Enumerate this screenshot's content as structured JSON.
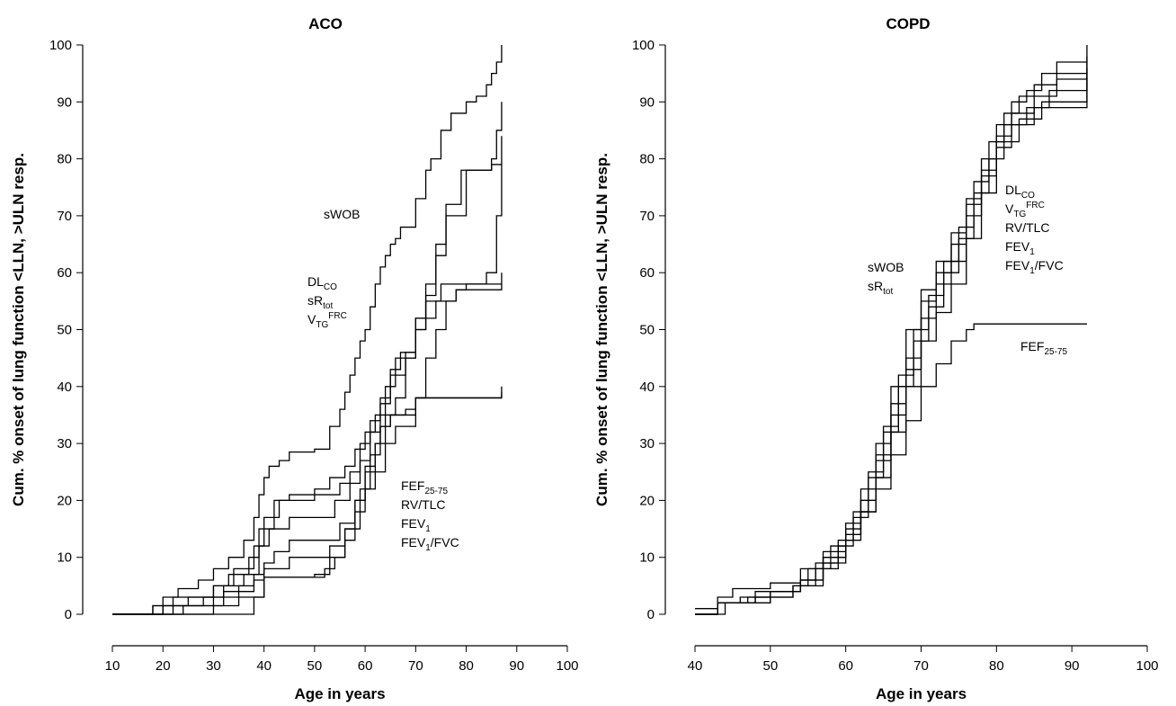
{
  "chart_data": [
    {
      "type": "line",
      "title": "ACO",
      "x_label": "Age in years",
      "y_label": "Cum. % onset of lung function <LLN, >ULN resp.",
      "xlim": [
        10,
        100
      ],
      "xticks": [
        10,
        20,
        30,
        40,
        50,
        60,
        70,
        80,
        90,
        100
      ],
      "ylim": [
        0,
        100
      ],
      "yticks": [
        0,
        10,
        20,
        30,
        40,
        50,
        60,
        70,
        80,
        90,
        100
      ],
      "step": true,
      "series": [
        {
          "color": "#000000",
          "x": [
            10,
            18,
            20,
            23,
            27,
            30,
            33,
            36,
            38,
            39,
            40,
            41,
            43,
            45,
            48,
            50,
            53,
            55,
            56,
            57,
            58,
            59,
            60,
            61,
            62,
            63,
            64,
            65,
            66,
            67,
            68,
            70,
            72,
            73,
            75,
            77,
            79,
            80,
            82,
            84,
            85,
            86,
            87
          ],
          "values": [
            0,
            1.5,
            3,
            4.5,
            6,
            8,
            10,
            13,
            17,
            21,
            24,
            26,
            27,
            28.5,
            28.5,
            29,
            33,
            36,
            39,
            42,
            45,
            48,
            50,
            54,
            58,
            61,
            63,
            65,
            66,
            68,
            68,
            73,
            78,
            80,
            85,
            88,
            88,
            90,
            91,
            93,
            95,
            97,
            100
          ]
        },
        {
          "color": "#000000",
          "x": [
            10,
            18,
            22,
            30,
            33,
            37,
            39,
            42,
            45,
            53,
            55,
            57,
            59,
            61,
            63,
            65,
            68,
            70,
            72,
            74,
            76,
            79,
            85,
            86,
            87
          ],
          "values": [
            0,
            1.5,
            3,
            5,
            7,
            10,
            15,
            20,
            21,
            21,
            23,
            25,
            30,
            34,
            38,
            42,
            46,
            52,
            58,
            65,
            72,
            78,
            80,
            85,
            90
          ]
        },
        {
          "color": "#000000",
          "x": [
            10,
            20,
            25,
            30,
            34,
            38,
            40,
            43,
            50,
            53,
            56,
            58,
            60,
            62,
            64,
            66,
            70,
            72,
            74,
            76,
            80,
            85,
            87
          ],
          "values": [
            0,
            1.5,
            3,
            5,
            8,
            12,
            17,
            20,
            22,
            24,
            26,
            29,
            32,
            35,
            40,
            45,
            50,
            56,
            63,
            70,
            78,
            79,
            84
          ]
        },
        {
          "color": "#000000",
          "x": [
            10,
            20,
            28,
            32,
            36,
            39,
            41,
            45,
            52,
            54,
            57,
            59,
            61,
            63,
            65,
            67,
            70,
            72,
            75,
            87
          ],
          "values": [
            0,
            1.5,
            3,
            5,
            7,
            12,
            15,
            17,
            17,
            20,
            23,
            27,
            32,
            37,
            43,
            46,
            50,
            55,
            58,
            60
          ]
        },
        {
          "color": "#000000",
          "x": [
            10,
            22,
            30,
            35,
            38,
            40,
            42,
            45,
            52,
            55,
            58,
            60,
            62,
            63,
            65,
            68,
            70,
            73,
            87
          ],
          "values": [
            0,
            1.5,
            3,
            5,
            7,
            9,
            11,
            13,
            13,
            16,
            20,
            25,
            30,
            33,
            35,
            36,
            38,
            38,
            40
          ]
        },
        {
          "color": "#000000",
          "x": [
            10,
            24,
            32,
            38,
            40,
            45,
            53,
            56,
            58,
            60,
            62,
            64,
            66,
            68,
            70,
            74,
            78,
            87
          ],
          "values": [
            0,
            1.5,
            4,
            6,
            8,
            10,
            12,
            15,
            20,
            26,
            30,
            35,
            38,
            45,
            52,
            55,
            57,
            58
          ]
        },
        {
          "color": "#000000",
          "x": [
            10,
            30,
            35,
            40,
            44,
            50,
            53,
            56,
            59,
            61,
            63,
            65,
            69,
            70,
            87
          ],
          "values": [
            0,
            1.5,
            3,
            6.5,
            6.5,
            7,
            10,
            15,
            22,
            28,
            33,
            35,
            35,
            38,
            39
          ]
        },
        {
          "color": "#000000",
          "x": [
            10,
            38,
            40,
            45,
            52,
            54,
            56,
            58,
            60,
            62,
            64,
            66,
            70,
            72,
            74,
            76,
            78,
            80,
            84,
            86,
            87
          ],
          "values": [
            0,
            3,
            6.5,
            6.5,
            8,
            10,
            13,
            18,
            22,
            25,
            30,
            33,
            38,
            45,
            50,
            55,
            57,
            58,
            60,
            70,
            79
          ]
        }
      ],
      "annotations": [
        {
          "lines": [
            "sWOB"
          ]
        },
        {
          "lines": [
            {
              "base": "DL",
              "sub": "CO"
            },
            {
              "base": "sR",
              "sub": "tot"
            },
            {
              "base": "V",
              "sub": "TG",
              "sup": "FRC"
            }
          ]
        },
        {
          "lines": [
            {
              "base": "FEF",
              "sub": "25-75"
            },
            "RV/TLC",
            {
              "base": "FEV",
              "sub": "1"
            },
            {
              "base": "FEV",
              "sub": "1",
              "tail": "/FVC"
            }
          ]
        }
      ]
    },
    {
      "type": "line",
      "title": "COPD",
      "x_label": "Age in years",
      "y_label": "Cum. % onset of lung function <LLN, >ULN resp.",
      "xlim": [
        40,
        100
      ],
      "xticks": [
        40,
        50,
        60,
        70,
        80,
        90,
        100
      ],
      "ylim": [
        0,
        100
      ],
      "yticks": [
        0,
        10,
        20,
        30,
        40,
        50,
        60,
        70,
        80,
        90,
        100
      ],
      "step": true,
      "series": [
        {
          "color": "#000000",
          "x": [
            40,
            43,
            45,
            50,
            54,
            57,
            60,
            62,
            64,
            66,
            68,
            70,
            72,
            74,
            76,
            78,
            80,
            82,
            84,
            86,
            88,
            92
          ],
          "values": [
            1,
            3,
            4.5,
            5.5,
            8,
            11,
            16,
            22,
            30,
            40,
            50,
            57,
            62,
            67,
            73,
            80,
            86,
            90,
            92,
            95,
            97,
            100
          ]
        },
        {
          "color": "#000000",
          "x": [
            40,
            43,
            46,
            50,
            54,
            56,
            59,
            61,
            63,
            65,
            67,
            69,
            71,
            73,
            75,
            77,
            79,
            81,
            83,
            85,
            88,
            92
          ],
          "values": [
            0,
            2,
            3,
            4,
            6,
            9,
            13,
            18,
            25,
            33,
            42,
            50,
            56,
            62,
            68,
            76,
            83,
            88,
            91,
            93,
            95,
            97
          ]
        },
        {
          "color": "#000000",
          "x": [
            40,
            43,
            47,
            53,
            55,
            58,
            60,
            62,
            64,
            66,
            68,
            70,
            72,
            74,
            76,
            78,
            80,
            82,
            85,
            88,
            92
          ],
          "values": [
            0,
            2,
            3,
            5,
            8,
            12,
            15,
            20,
            28,
            37,
            45,
            55,
            60,
            65,
            72,
            78,
            84,
            88,
            91,
            94,
            96
          ]
        },
        {
          "color": "#000000",
          "x": [
            40,
            43,
            48,
            53,
            56,
            59,
            61,
            63,
            65,
            67,
            69,
            71,
            73,
            75,
            77,
            79,
            81,
            84,
            87,
            92
          ],
          "values": [
            0,
            2,
            3,
            5,
            8,
            12,
            17,
            24,
            32,
            40,
            48,
            54,
            60,
            66,
            74,
            80,
            86,
            89,
            92,
            95
          ]
        },
        {
          "color": "#000000",
          "x": [
            40,
            44,
            50,
            54,
            57,
            60,
            62,
            64,
            66,
            68,
            70,
            72,
            74,
            76,
            78,
            80,
            83,
            86,
            92
          ],
          "values": [
            0,
            2,
            4,
            6,
            10,
            14,
            20,
            27,
            35,
            43,
            52,
            58,
            62,
            70,
            77,
            83,
            87,
            90,
            94
          ]
        },
        {
          "color": "#000000",
          "x": [
            40,
            43,
            50,
            54,
            57,
            60,
            62,
            64,
            66,
            68,
            70,
            72,
            74,
            76,
            77,
            92
          ],
          "values": [
            0,
            2,
            4,
            6,
            10,
            14,
            18,
            22,
            28,
            34,
            40,
            44,
            48,
            50,
            51,
            51
          ]
        },
        {
          "color": "#000000",
          "x": [
            40,
            43,
            48,
            54,
            57,
            60,
            62,
            64,
            66,
            68,
            70,
            72,
            74,
            76,
            78,
            80,
            82,
            85,
            92
          ],
          "values": [
            0,
            2,
            4,
            5,
            9,
            13,
            18,
            24,
            32,
            40,
            48,
            53,
            58,
            66,
            74,
            82,
            86,
            89,
            98
          ]
        }
      ],
      "annotations": [
        {
          "lines": [
            {
              "base": "DL",
              "sub": "CO"
            },
            {
              "base": "V",
              "sub": "TG",
              "sup": "FRC"
            },
            "RV/TLC",
            {
              "base": "FEV",
              "sub": "1"
            },
            {
              "base": "FEV",
              "sub": "1",
              "tail": "/FVC"
            }
          ]
        },
        {
          "lines": [
            "sWOB",
            {
              "base": "sR",
              "sub": "tot"
            }
          ]
        },
        {
          "lines": [
            {
              "base": "FEF",
              "sub": "25-75"
            }
          ]
        }
      ]
    }
  ]
}
